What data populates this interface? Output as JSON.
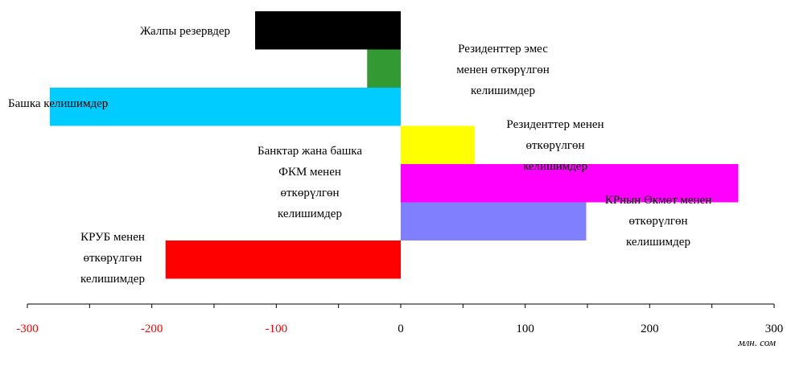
{
  "chart_data": {
    "type": "bar",
    "orientation": "horizontal",
    "unit": "млн. сом",
    "xlim": [
      -300,
      300
    ],
    "x_ticks": [
      "-300",
      "-200",
      "-100",
      "0",
      "100",
      "200",
      "300"
    ],
    "negative_tick_color": "#ff0000",
    "grid": false,
    "legend": "none",
    "bars": [
      {
        "label": "Жалпы резервдер",
        "value": -117,
        "color": "#000000"
      },
      {
        "label": "Резиденттер эмес\nменен өткөрүлгөн\nкелишимдер",
        "value": -27,
        "color": "#339933"
      },
      {
        "label": "Башка келишимдер",
        "value": -282,
        "color": "#00ccff"
      },
      {
        "label": "Резиденттер менен\nөткөрүлгөн\nкелишимдер",
        "value": 59,
        "color": "#ffff00"
      },
      {
        "label": "Банктар жана башка\nФКМ менен\nөткөрүлгөн\nкелишимдер",
        "value": 271,
        "color": "#ff00ff"
      },
      {
        "label": "КРнын Өкмөт менен\nөткөрүлгөн\nкелишимдер",
        "value": 149,
        "color": "#8080ff"
      },
      {
        "label": "КРУБ менен\nөткөрүлгөн\nкелишимдер",
        "value": -189,
        "color": "#ff0000"
      }
    ]
  }
}
